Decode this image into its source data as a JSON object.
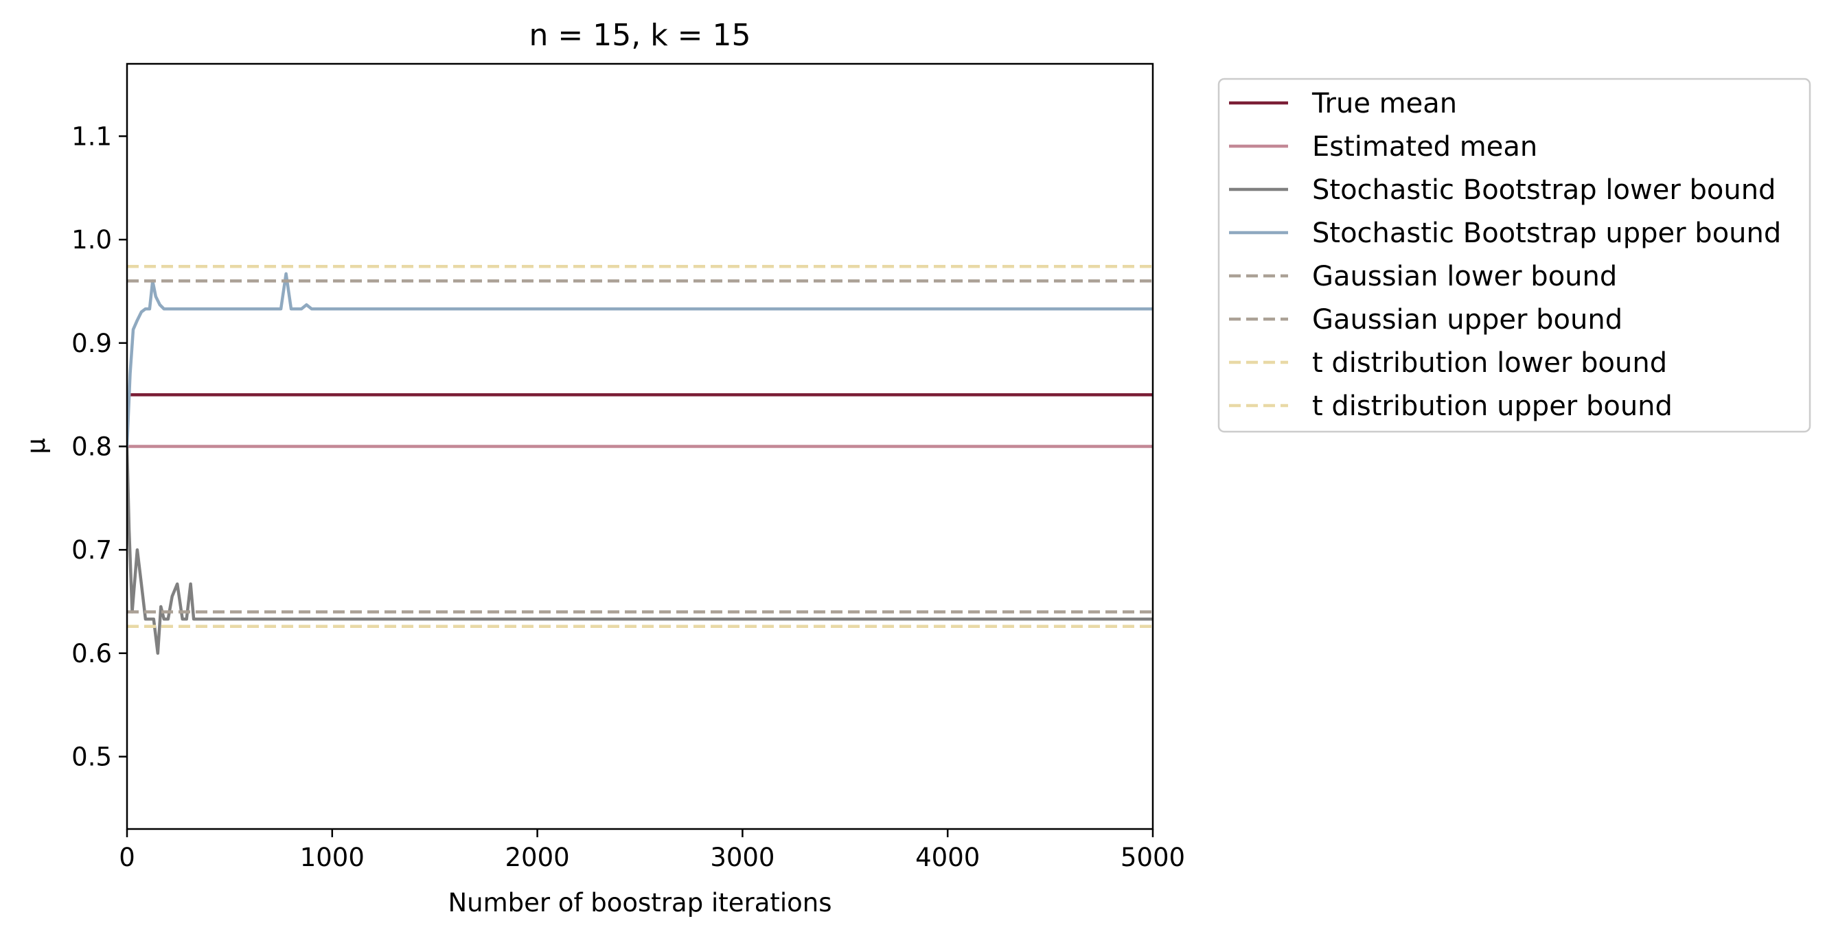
{
  "chart_data": {
    "type": "line",
    "title": "n = 15, k = 15",
    "xlabel": "Number of boostrap iterations",
    "ylabel": "μ",
    "xlim": [
      0,
      5000
    ],
    "ylim": [
      0.43,
      1.17
    ],
    "x_ticks": [
      0,
      1000,
      2000,
      3000,
      4000,
      5000
    ],
    "x_tick_labels": [
      "0",
      "1000",
      "2000",
      "3000",
      "4000",
      "5000"
    ],
    "y_ticks": [
      0.5,
      0.6,
      0.7,
      0.8,
      0.9,
      1.0,
      1.1
    ],
    "y_tick_labels": [
      "0.5",
      "0.6",
      "0.7",
      "0.8",
      "0.9",
      "1.0",
      "1.1"
    ],
    "grid": false,
    "legend_position": "outside right, top",
    "series": [
      {
        "name": "True mean",
        "color": "#7b1e36",
        "style": "solid",
        "x": [
          0,
          5000
        ],
        "y": [
          0.85,
          0.85
        ]
      },
      {
        "name": "Estimated mean",
        "color": "#c38896",
        "style": "solid",
        "x": [
          0,
          5000
        ],
        "y": [
          0.8,
          0.8
        ]
      },
      {
        "name": "Stochastic Bootstrap lower bound",
        "color": "#808080",
        "style": "solid",
        "x": [
          0,
          10,
          25,
          50,
          70,
          90,
          110,
          130,
          150,
          165,
          180,
          200,
          220,
          245,
          270,
          290,
          310,
          325,
          345,
          400,
          600,
          1000,
          2000,
          3000,
          4000,
          5000
        ],
        "y": [
          0.8,
          0.72,
          0.64,
          0.7,
          0.667,
          0.633,
          0.633,
          0.633,
          0.6,
          0.645,
          0.633,
          0.633,
          0.655,
          0.667,
          0.633,
          0.633,
          0.667,
          0.633,
          0.633,
          0.633,
          0.633,
          0.633,
          0.633,
          0.633,
          0.633,
          0.633
        ]
      },
      {
        "name": "Stochastic Bootstrap upper bound",
        "color": "#8fa9c0",
        "style": "solid",
        "x": [
          0,
          15,
          30,
          50,
          70,
          90,
          110,
          125,
          140,
          160,
          180,
          200,
          300,
          500,
          700,
          750,
          775,
          800,
          850,
          875,
          900,
          1000,
          2000,
          3000,
          4000,
          5000
        ],
        "y": [
          0.8,
          0.87,
          0.913,
          0.922,
          0.93,
          0.933,
          0.933,
          0.96,
          0.945,
          0.937,
          0.933,
          0.933,
          0.933,
          0.933,
          0.933,
          0.933,
          0.967,
          0.933,
          0.933,
          0.937,
          0.933,
          0.933,
          0.933,
          0.933,
          0.933,
          0.933
        ]
      },
      {
        "name": "Gaussian lower bound",
        "color": "#aba196",
        "style": "dashed",
        "x": [
          0,
          5000
        ],
        "y": [
          0.64,
          0.64
        ]
      },
      {
        "name": "Gaussian upper bound",
        "color": "#aba196",
        "style": "dashed",
        "x": [
          0,
          5000
        ],
        "y": [
          0.96,
          0.96
        ]
      },
      {
        "name": "t distribution lower bound",
        "color": "#e9d9a6",
        "style": "dashed",
        "x": [
          0,
          5000
        ],
        "y": [
          0.626,
          0.626
        ]
      },
      {
        "name": "t distribution upper bound",
        "color": "#e9d9a6",
        "style": "dashed",
        "x": [
          0,
          5000
        ],
        "y": [
          0.974,
          0.974
        ]
      }
    ]
  }
}
